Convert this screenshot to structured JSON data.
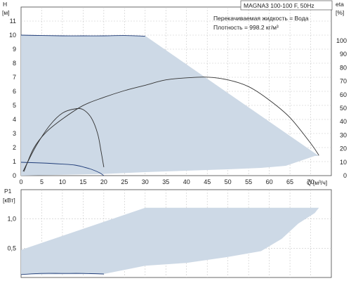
{
  "chart_data": [
    {
      "type": "line",
      "panel": "head-efficiency",
      "title": "MAGNA3 100-100 F, 50Hz",
      "notes": [
        "Перекачиваемая жидкость = Вода",
        "Плотность = 998.2 кг/м³"
      ],
      "xlabel": "Q [м³/ч]",
      "ylabel_left": [
        "H",
        "[м]"
      ],
      "ylabel_right": [
        "eta",
        "[%]"
      ],
      "xlim": [
        0,
        75
      ],
      "ylim_left": [
        0,
        12
      ],
      "ylim_right": [
        0,
        125
      ],
      "x_ticks": [
        0,
        5,
        10,
        15,
        20,
        25,
        30,
        35,
        40,
        45,
        50,
        55,
        60,
        65,
        70
      ],
      "y_ticks_left": [
        0,
        1,
        2,
        3,
        4,
        5,
        6,
        7,
        8,
        9,
        10,
        11
      ],
      "y_ticks_right": [
        0,
        10,
        20,
        30,
        40,
        50,
        60,
        70,
        80,
        90,
        100
      ],
      "grid": true,
      "series": [
        {
          "kind": "area",
          "color": "#cdd9e6",
          "x": [
            0,
            20,
            30,
            72,
            71,
            64,
            58,
            50,
            40,
            30,
            20,
            0
          ],
          "y": [
            10,
            9.95,
            9.95,
            1.4,
            1.4,
            0.7,
            0.55,
            0.45,
            0.35,
            0.25,
            0.12,
            0
          ]
        },
        {
          "kind": "line",
          "axis": "left",
          "color": "#1f3c78",
          "x": [
            0,
            5,
            10,
            15,
            20,
            25,
            30
          ],
          "y": [
            10.0,
            9.97,
            9.95,
            9.95,
            9.95,
            9.97,
            9.92
          ]
        },
        {
          "kind": "line",
          "axis": "left",
          "color": "#1f3c78",
          "x": [
            0,
            5,
            10,
            13,
            15,
            17,
            19,
            20
          ],
          "y": [
            0.95,
            0.9,
            0.82,
            0.75,
            0.62,
            0.45,
            0.2,
            0.0
          ]
        },
        {
          "kind": "line",
          "axis": "left",
          "color": "#333333",
          "x": [
            0.5,
            2,
            4,
            7,
            10,
            13,
            15,
            17,
            18.5,
            19.3,
            20
          ],
          "y": [
            0.3,
            1.2,
            2.3,
            3.6,
            4.45,
            4.75,
            4.7,
            4.1,
            3.0,
            1.8,
            0.6
          ]
        },
        {
          "kind": "line",
          "axis": "right",
          "color": "#333333",
          "x": [
            0.7,
            3,
            6,
            10,
            15,
            20,
            25,
            30,
            35,
            40,
            45,
            50,
            55,
            60,
            65,
            70,
            72
          ],
          "y": [
            3,
            20,
            32,
            42,
            52,
            58,
            63,
            67,
            71,
            72.5,
            73,
            71,
            66,
            56,
            43,
            24,
            15
          ]
        }
      ]
    },
    {
      "type": "area",
      "panel": "power",
      "ylabel": [
        "P1",
        "[кВт]"
      ],
      "xlim": [
        0,
        75
      ],
      "ylim": [
        0,
        1.5
      ],
      "y_ticks": [
        0.5,
        1.0
      ],
      "y_tick_labels": [
        "0,5",
        "1,0"
      ],
      "grid": true,
      "series": [
        {
          "kind": "area",
          "color": "#cdd9e6",
          "x": [
            0,
            30,
            72,
            71,
            67,
            63,
            58,
            50,
            40,
            30,
            20,
            0
          ],
          "y": [
            0.47,
            1.19,
            1.19,
            1.1,
            0.92,
            0.66,
            0.45,
            0.35,
            0.25,
            0.2,
            0.06,
            0.05
          ]
        },
        {
          "kind": "line",
          "color": "#1f3c78",
          "x": [
            0,
            5,
            10,
            15,
            20
          ],
          "y": [
            0.05,
            0.07,
            0.07,
            0.07,
            0.06
          ]
        }
      ]
    }
  ]
}
